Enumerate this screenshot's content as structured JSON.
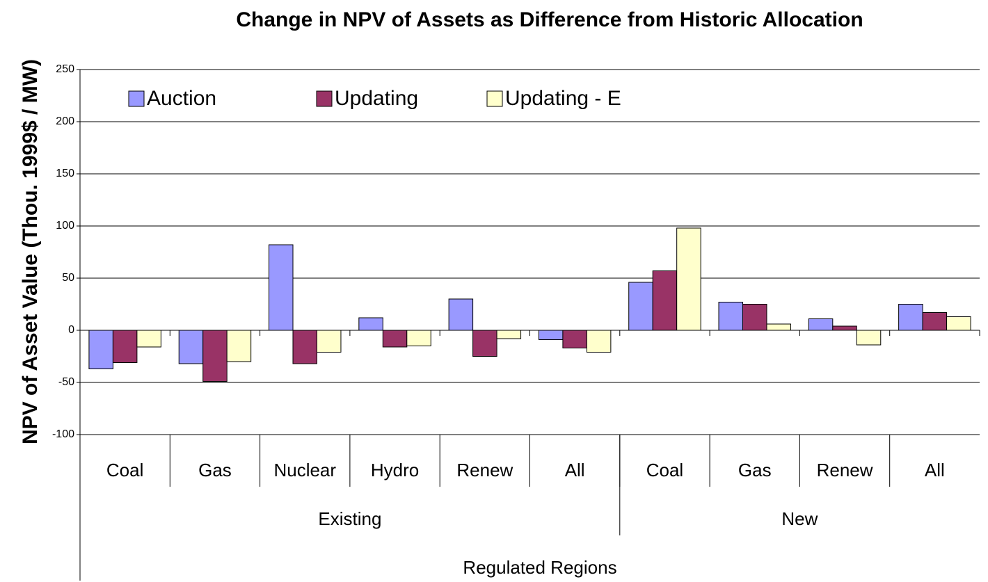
{
  "chart_data": {
    "type": "bar",
    "title": "Change in NPV of Assets as Difference from Historic Allocation",
    "y_label": "NPV of Asset Value (Thou. 1999$ / MW)",
    "x_label": "Regulated Regions",
    "groups": [
      {
        "label": "Existing",
        "categories": [
          "Coal",
          "Gas",
          "Nuclear",
          "Hydro",
          "Renew",
          "All"
        ]
      },
      {
        "label": "New",
        "categories": [
          "Coal",
          "Gas",
          "Renew",
          "All"
        ]
      }
    ],
    "series": [
      {
        "name": "Auction",
        "color": "#9999ff",
        "values": [
          -37,
          -32,
          82,
          12,
          30,
          -9,
          46,
          27,
          11,
          25
        ]
      },
      {
        "name": "Updating",
        "color": "#993366",
        "values": [
          -31,
          -49,
          -32,
          -16,
          -25,
          -17,
          57,
          25,
          4,
          17
        ]
      },
      {
        "name": "Updating - E",
        "color": "#ffffcc",
        "values": [
          -16,
          -30,
          -21,
          -15,
          -8,
          -21,
          98,
          6,
          -14,
          13
        ]
      }
    ],
    "ylim": [
      -100,
      250
    ],
    "yticks": [
      -100,
      -50,
      0,
      50,
      100,
      150,
      200,
      250
    ],
    "grid": true
  }
}
